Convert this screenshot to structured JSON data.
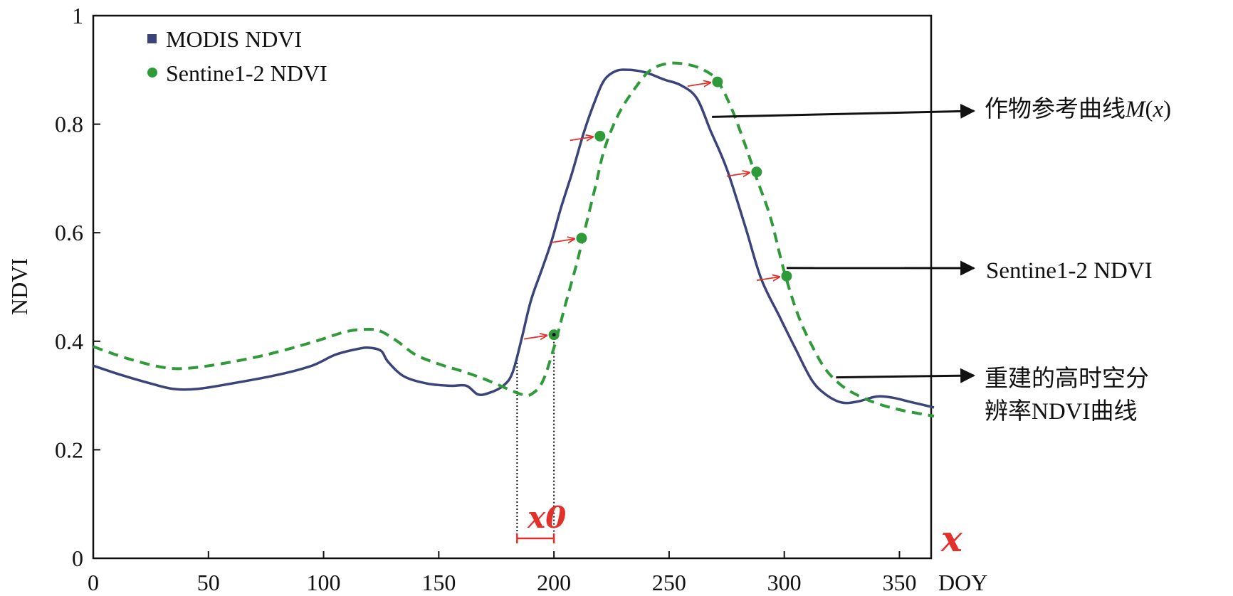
{
  "chart_data": {
    "type": "line",
    "ylabel": "NDVI",
    "xunit_label": "DOY",
    "xlim": [
      0,
      365
    ],
    "ylim": [
      0,
      1
    ],
    "xticks": [
      0,
      50,
      100,
      150,
      200,
      250,
      300,
      350
    ],
    "yticks": [
      0,
      0.2,
      0.4,
      0.6,
      0.8,
      1
    ],
    "ytick_labels": [
      "0",
      "0.2",
      "0.4",
      "0.6",
      "0.8",
      "1"
    ],
    "grid": false,
    "legend_position": "top-left",
    "series": [
      {
        "name": "MODIS NDVI",
        "color": "#3a4478",
        "style": "solid",
        "x": [
          0,
          12,
          25,
          35,
          45,
          60,
          80,
          95,
          105,
          115,
          120,
          125,
          128,
          135,
          145,
          155,
          162,
          167,
          172,
          178,
          182,
          186,
          190,
          195,
          199,
          203,
          208,
          213,
          218,
          222,
          227,
          233,
          240,
          248,
          255,
          262,
          268,
          275,
          283,
          290,
          298,
          305,
          312,
          318,
          325,
          332,
          340,
          347,
          355,
          365
        ],
        "y": [
          0.355,
          0.338,
          0.322,
          0.312,
          0.312,
          0.322,
          0.338,
          0.355,
          0.375,
          0.386,
          0.388,
          0.382,
          0.362,
          0.335,
          0.322,
          0.318,
          0.318,
          0.302,
          0.305,
          0.318,
          0.342,
          0.405,
          0.475,
          0.535,
          0.585,
          0.645,
          0.712,
          0.785,
          0.845,
          0.882,
          0.898,
          0.9,
          0.895,
          0.882,
          0.872,
          0.848,
          0.788,
          0.718,
          0.612,
          0.515,
          0.445,
          0.385,
          0.328,
          0.302,
          0.287,
          0.289,
          0.298,
          0.296,
          0.288,
          0.278
        ]
      },
      {
        "name": "Sentine1-2 NDVI",
        "color": "#2f9a3a",
        "style": "dashed",
        "x": [
          0,
          15,
          30,
          40,
          55,
          75,
          95,
          110,
          120,
          125,
          132,
          140,
          150,
          160,
          170,
          180,
          186,
          190,
          195,
          200,
          205,
          210,
          213,
          218,
          222,
          228,
          235,
          242,
          250,
          258,
          265,
          271,
          277,
          283,
          288,
          294,
          300,
          306,
          312,
          318,
          325,
          333,
          342,
          352,
          365
        ],
        "y": [
          0.39,
          0.368,
          0.352,
          0.35,
          0.358,
          0.375,
          0.398,
          0.418,
          0.422,
          0.418,
          0.4,
          0.375,
          0.358,
          0.345,
          0.33,
          0.312,
          0.302,
          0.302,
          0.325,
          0.388,
          0.468,
          0.545,
          0.598,
          0.685,
          0.755,
          0.818,
          0.865,
          0.9,
          0.912,
          0.91,
          0.9,
          0.88,
          0.83,
          0.762,
          0.7,
          0.628,
          0.528,
          0.448,
          0.392,
          0.348,
          0.318,
          0.298,
          0.283,
          0.272,
          0.262
        ]
      }
    ],
    "sample_points": {
      "x": [
        200,
        212,
        220,
        271,
        288,
        301
      ],
      "y": [
        0.412,
        0.59,
        0.778,
        0.878,
        0.712,
        0.52
      ]
    },
    "shift_label": "x0",
    "shift_range": [
      184,
      200
    ],
    "x_axis_symbol": "x",
    "annotations": [
      {
        "text": "作物参考曲线M(x)",
        "parts": [
          "作物参考曲线",
          "M",
          "(",
          "x",
          ")"
        ],
        "target_x": 268,
        "target_y": 0.82
      },
      {
        "text": "Sentine1-2 NDVI",
        "target_x": 301,
        "target_y": 0.535
      },
      {
        "lines": [
          "重建的高时空分",
          "辨率NDVI曲线"
        ],
        "target_x": 320,
        "target_y": 0.34
      }
    ]
  },
  "colors": {
    "modis": "#3a4478",
    "sentinel": "#2f9a3a",
    "shift_arrow": "#e2312b",
    "x0_label": "#e2312b",
    "axis": "#111111"
  }
}
